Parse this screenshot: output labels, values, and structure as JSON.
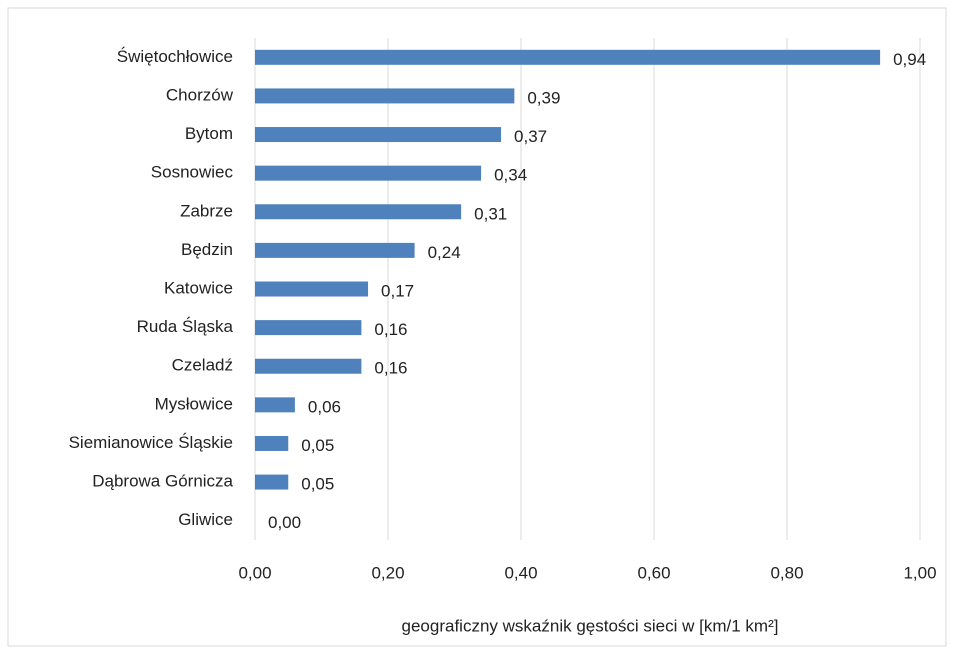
{
  "chart_data": {
    "type": "bar",
    "orientation": "horizontal",
    "categories": [
      "Świętochłowice",
      "Chorzów",
      "Bytom",
      "Sosnowiec",
      "Zabrze",
      "Będzin",
      "Katowice",
      "Ruda Śląska",
      "Czeladź",
      "Mysłowice",
      "Siemianowice Śląskie",
      "Dąbrowa Górnicza",
      "Gliwice"
    ],
    "values": [
      0.94,
      0.39,
      0.37,
      0.34,
      0.31,
      0.24,
      0.17,
      0.16,
      0.16,
      0.06,
      0.05,
      0.05,
      0.0
    ],
    "value_labels": [
      "0,94",
      "0,39",
      "0,37",
      "0,34",
      "0,31",
      "0,24",
      "0,17",
      "0,16",
      "0,16",
      "0,06",
      "0,05",
      "0,05",
      "0,00"
    ],
    "color": "#4f81bd",
    "xlim": [
      0,
      1
    ],
    "xticks": [
      {
        "value": 0,
        "label": "0,00"
      },
      {
        "value": 0.2,
        "label": "0,20"
      },
      {
        "value": 0.4,
        "label": "0,40"
      },
      {
        "value": 0.6,
        "label": "0,60"
      },
      {
        "value": 0.8,
        "label": "0,80"
      },
      {
        "value": 1,
        "label": "1,00"
      }
    ],
    "xlabel": "geograficzny wskaźnik gęstości sieci w [km/1 km²]",
    "grid": true
  }
}
